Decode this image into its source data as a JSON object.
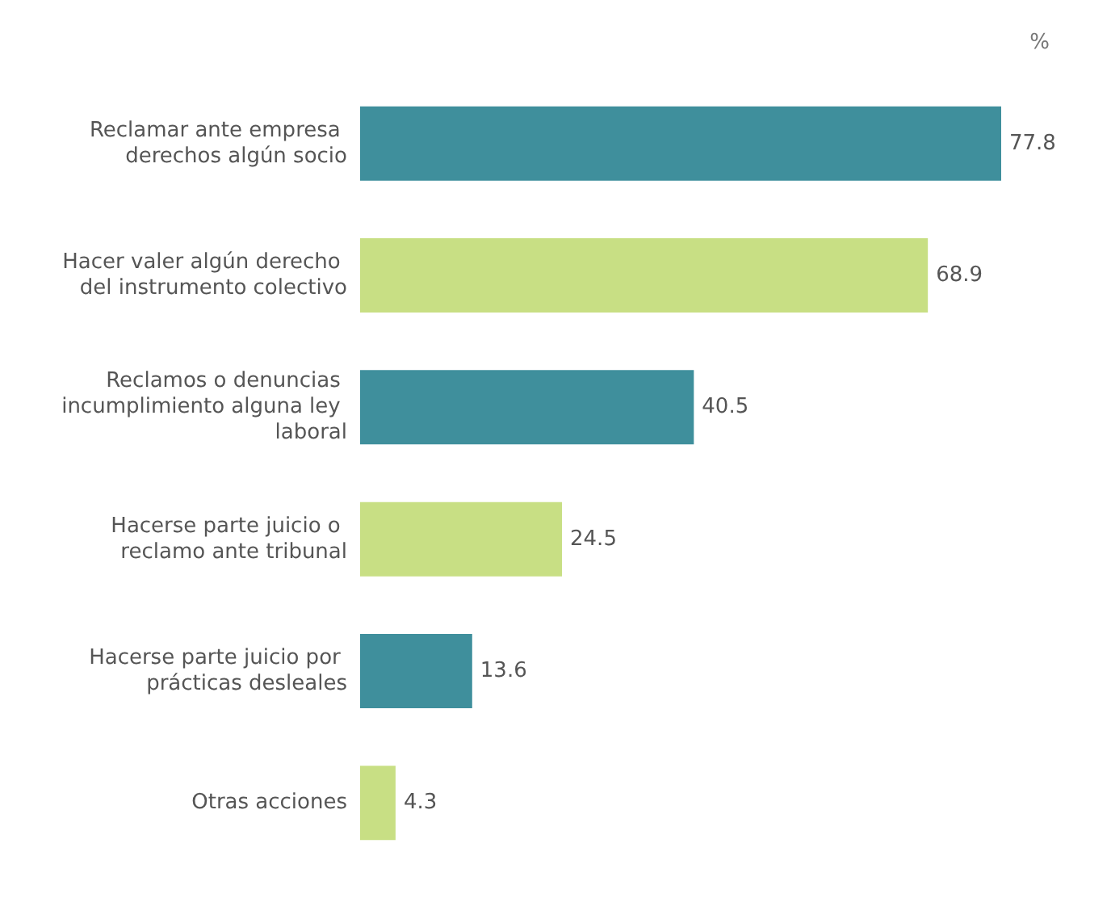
{
  "chart_data": {
    "type": "bar",
    "orientation": "horizontal",
    "categories": [
      "Reclamar ante empresa derechos algún socio",
      "Hacer valer algún derecho del instrumento colectivo",
      "Reclamos o denuncias incumplimiento alguna ley laboral",
      "Hacerse parte juicio o reclamo ante tribunal",
      "Hacerse parte juicio por prácticas desleales",
      "Otras acciones"
    ],
    "values": [
      77.8,
      68.9,
      40.5,
      24.5,
      13.6,
      4.3
    ],
    "colors": [
      "#3f8f9c",
      "#c8df84",
      "#3f8f9c",
      "#c8df84",
      "#3f8f9c",
      "#c8df84"
    ],
    "data_labels": true,
    "annotations": [
      "%"
    ]
  }
}
